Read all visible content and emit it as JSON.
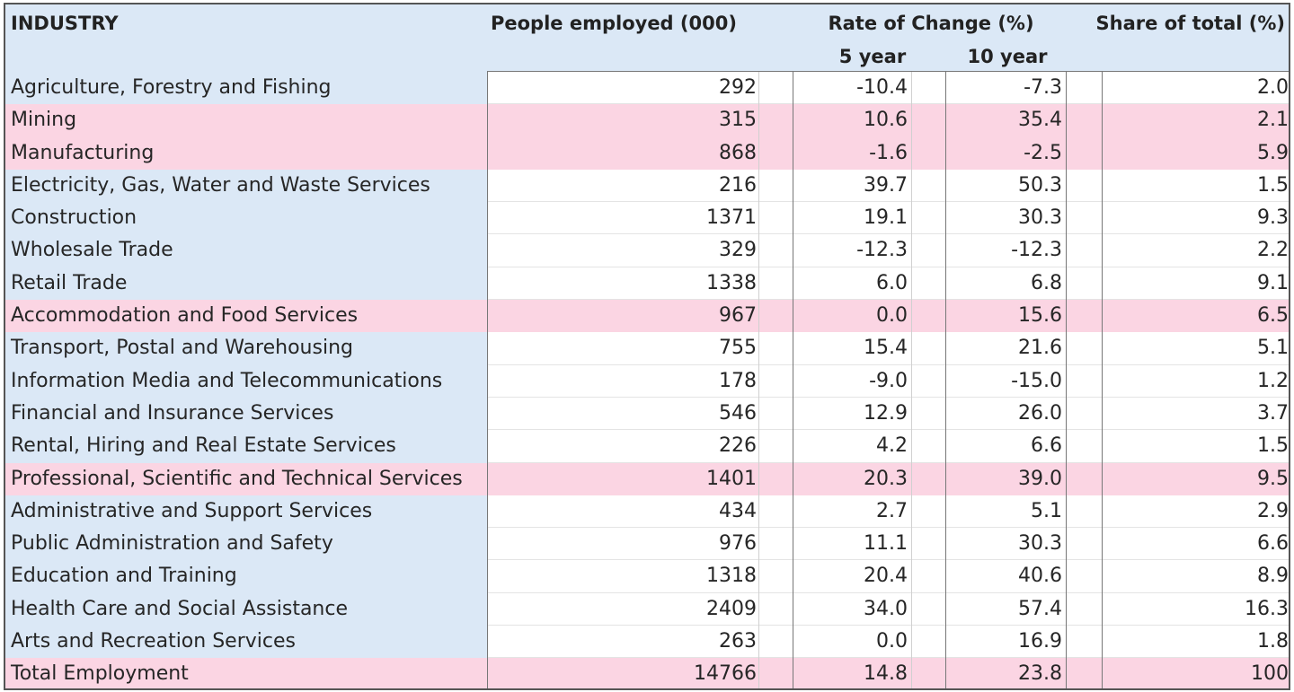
{
  "headers": {
    "industry": "INDUSTRY",
    "people": "People employed (000)",
    "rate": "Rate of Change (%)",
    "rate_5y": "5 year",
    "rate_10y": "10 year",
    "share": "Share of total (%)"
  },
  "colors": {
    "header_bg": "#dbe8f6",
    "name_bg": "#dbe8f6",
    "highlight_bg": "#fbd5e3",
    "border": "#555555"
  },
  "rows": [
    {
      "industry": "Agriculture, Forestry and Fishing",
      "people": "292",
      "rate_5y": "-10.4",
      "rate_10y": "-7.3",
      "share": "2.0",
      "highlight": false
    },
    {
      "industry": "Mining",
      "people": "315",
      "rate_5y": "10.6",
      "rate_10y": "35.4",
      "share": "2.1",
      "highlight": true
    },
    {
      "industry": "Manufacturing",
      "people": "868",
      "rate_5y": "-1.6",
      "rate_10y": "-2.5",
      "share": "5.9",
      "highlight": true
    },
    {
      "industry": "Electricity, Gas, Water and Waste Services",
      "people": "216",
      "rate_5y": "39.7",
      "rate_10y": "50.3",
      "share": "1.5",
      "highlight": false
    },
    {
      "industry": "Construction",
      "people": "1371",
      "rate_5y": "19.1",
      "rate_10y": "30.3",
      "share": "9.3",
      "highlight": false
    },
    {
      "industry": "Wholesale Trade",
      "people": "329",
      "rate_5y": "-12.3",
      "rate_10y": "-12.3",
      "share": "2.2",
      "highlight": false
    },
    {
      "industry": "Retail Trade",
      "people": "1338",
      "rate_5y": "6.0",
      "rate_10y": "6.8",
      "share": "9.1",
      "highlight": false
    },
    {
      "industry": "Accommodation and Food Services",
      "people": "967",
      "rate_5y": "0.0",
      "rate_10y": "15.6",
      "share": "6.5",
      "highlight": true
    },
    {
      "industry": "Transport, Postal and Warehousing",
      "people": "755",
      "rate_5y": "15.4",
      "rate_10y": "21.6",
      "share": "5.1",
      "highlight": false
    },
    {
      "industry": "Information Media and Telecommunications",
      "people": "178",
      "rate_5y": "-9.0",
      "rate_10y": "-15.0",
      "share": "1.2",
      "highlight": false
    },
    {
      "industry": "Financial and Insurance Services",
      "people": "546",
      "rate_5y": "12.9",
      "rate_10y": "26.0",
      "share": "3.7",
      "highlight": false
    },
    {
      "industry": "Rental, Hiring and Real Estate Services",
      "people": "226",
      "rate_5y": "4.2",
      "rate_10y": "6.6",
      "share": "1.5",
      "highlight": false
    },
    {
      "industry": "Professional, Scientific and Technical Services",
      "people": "1401",
      "rate_5y": "20.3",
      "rate_10y": "39.0",
      "share": "9.5",
      "highlight": true
    },
    {
      "industry": "Administrative and Support Services",
      "people": "434",
      "rate_5y": "2.7",
      "rate_10y": "5.1",
      "share": "2.9",
      "highlight": false
    },
    {
      "industry": "Public Administration and Safety",
      "people": "976",
      "rate_5y": "11.1",
      "rate_10y": "30.3",
      "share": "6.6",
      "highlight": false
    },
    {
      "industry": "Education and Training",
      "people": "1318",
      "rate_5y": "20.4",
      "rate_10y": "40.6",
      "share": "8.9",
      "highlight": false
    },
    {
      "industry": "Health Care and Social Assistance",
      "people": "2409",
      "rate_5y": "34.0",
      "rate_10y": "57.4",
      "share": "16.3",
      "highlight": false
    },
    {
      "industry": "Arts and Recreation Services",
      "people": "263",
      "rate_5y": "0.0",
      "rate_10y": "16.9",
      "share": "1.8",
      "highlight": false
    },
    {
      "industry": "Total Employment",
      "people": "14766",
      "rate_5y": "14.8",
      "rate_10y": "23.8",
      "share": "100",
      "highlight": true
    }
  ]
}
